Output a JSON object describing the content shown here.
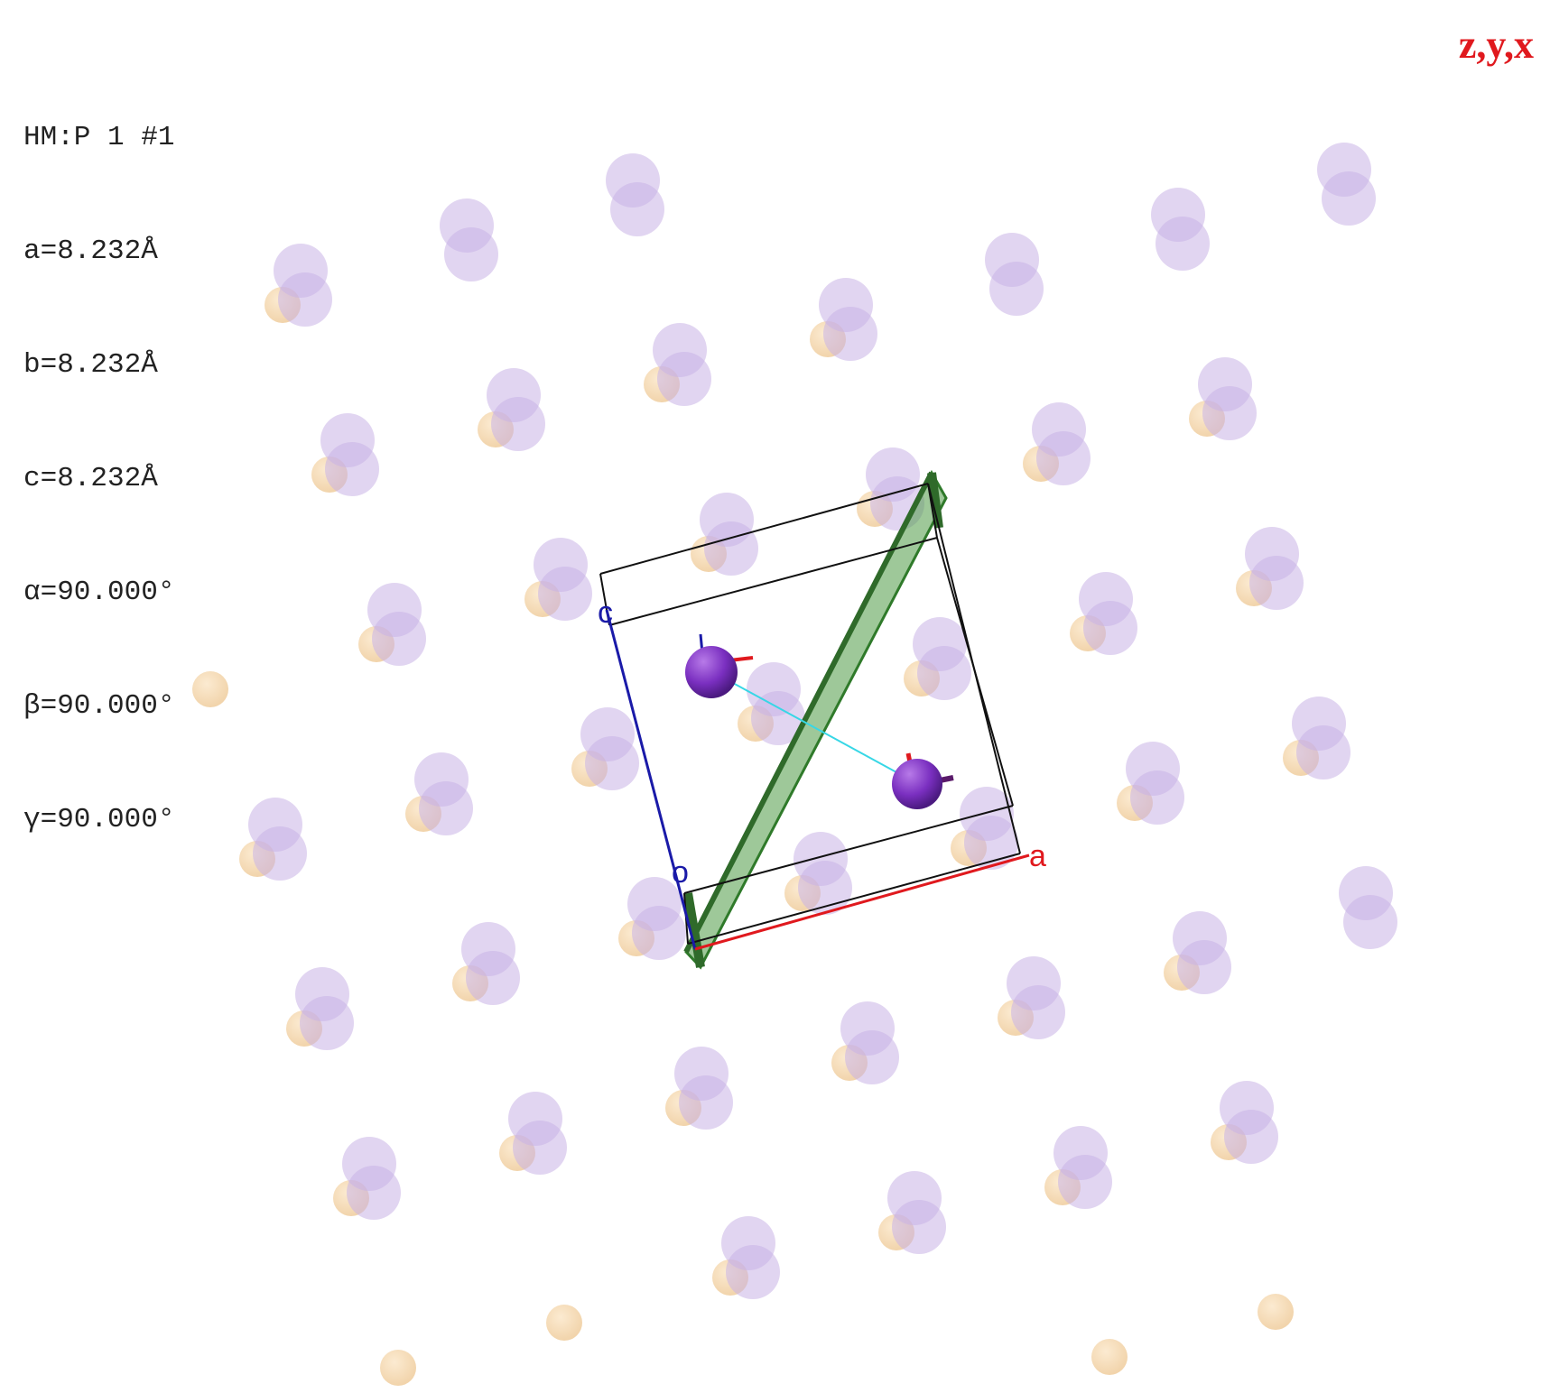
{
  "cell_info": {
    "space_group": "HM:P 1 #1",
    "a": "a=8.232Å",
    "b": "b=8.232Å",
    "c": "c=8.232Å",
    "alpha": "α=90.000°",
    "beta": "β=90.000°",
    "gamma": "γ=90.000°"
  },
  "orientation_label": "z,y,x",
  "axis_labels": {
    "a": "a",
    "c": "c",
    "origin": "o"
  },
  "colors": {
    "background": "#ffffff",
    "ghost_atom_large": "#c9b3e6",
    "ghost_atom_small": "#f3d6ad",
    "cell_atom": "#7a2fc0",
    "cell_edge": "#111111",
    "axis_a": "#e0191e",
    "axis_c": "#1a1aa8",
    "plane": "#4f9a45",
    "bond": "#37d7e6",
    "orientation_text": "#e0191e"
  }
}
